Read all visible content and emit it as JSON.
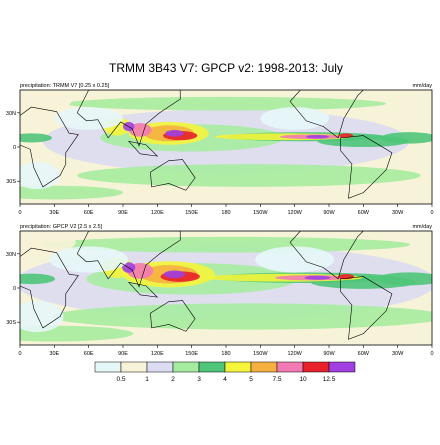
{
  "title": "TRMM 3B43 V7: GPCP v2: 1998-2013: July",
  "panels": [
    {
      "left_label": "precipitation: TRMM V7 [0.25 x 0.25]",
      "right_label": "mm/day"
    },
    {
      "left_label": "precipitation: GPCP V2 [2.5 x 2.5]",
      "right_label": "mm/day"
    }
  ],
  "lon_labels": [
    "0",
    "30E",
    "60E",
    "90E",
    "120E",
    "150E",
    "180",
    "150W",
    "120W",
    "90W",
    "60W",
    "30W",
    "0"
  ],
  "lat_labels": [
    "30N",
    "0",
    "30S"
  ],
  "colorbar": {
    "colors": [
      "#e6f7f8",
      "#f7f3d8",
      "#dcdcf2",
      "#a6eca0",
      "#4fc57a",
      "#f5f53c",
      "#f5b040",
      "#f27ab4",
      "#e8202a",
      "#a040e0"
    ],
    "labels": [
      "0.5",
      "1",
      "2",
      "3",
      "4",
      "5",
      "7.5",
      "10",
      "12.5"
    ]
  }
}
